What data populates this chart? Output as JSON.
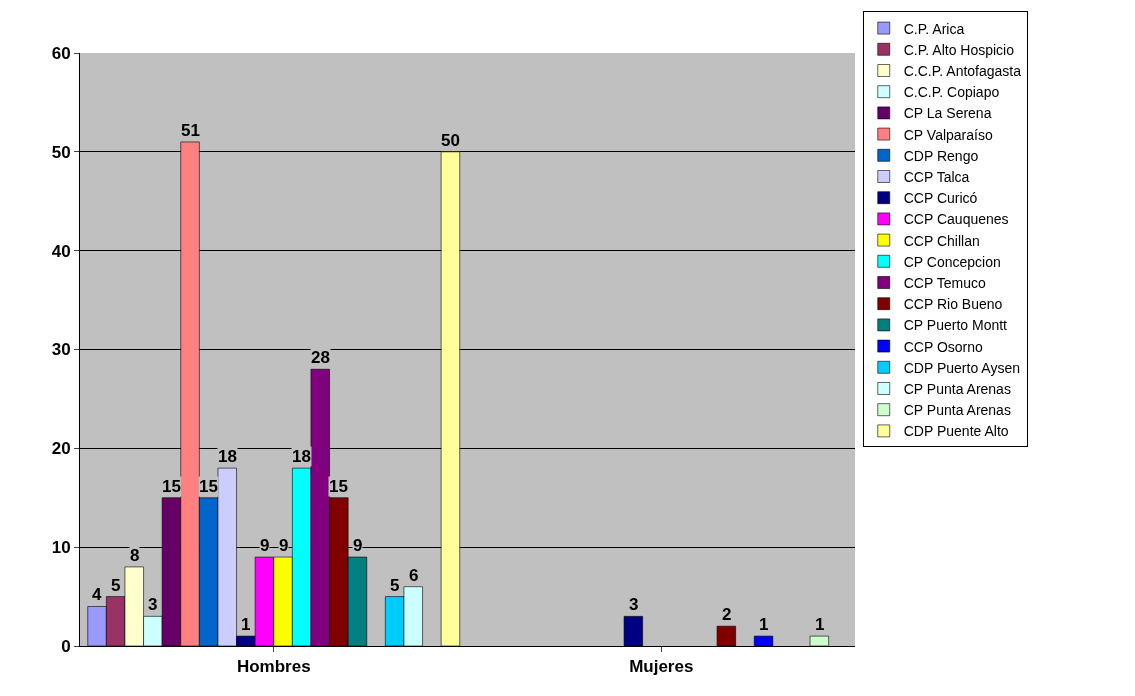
{
  "chart_data": {
    "type": "bar",
    "categories": [
      "Hombres",
      "Mujeres"
    ],
    "series": [
      {
        "name": "C.P. Arica",
        "color": "#9999ff",
        "values": [
          4,
          null
        ]
      },
      {
        "name": "C.P. Alto Hospicio",
        "color": "#993366",
        "values": [
          5,
          null
        ]
      },
      {
        "name": "C.C.P. Antofagasta",
        "color": "#ffffcc",
        "values": [
          8,
          null
        ]
      },
      {
        "name": "C.C.P. Copiapo",
        "color": "#ccffff",
        "values": [
          3,
          null
        ]
      },
      {
        "name": "CP La Serena",
        "color": "#660066",
        "values": [
          15,
          null
        ]
      },
      {
        "name": "CP Valparaíso",
        "color": "#ff8080",
        "values": [
          51,
          null
        ]
      },
      {
        "name": "CDP Rengo",
        "color": "#0066cc",
        "values": [
          15,
          null
        ]
      },
      {
        "name": "CCP Talca",
        "color": "#ccccff",
        "values": [
          18,
          null
        ]
      },
      {
        "name": "CCP Curicó",
        "color": "#000080",
        "values": [
          1,
          3
        ]
      },
      {
        "name": "CCP Cauquenes",
        "color": "#ff00ff",
        "values": [
          9,
          null
        ]
      },
      {
        "name": "CCP Chillan",
        "color": "#ffff00",
        "values": [
          9,
          null
        ]
      },
      {
        "name": "CP Concepcion",
        "color": "#00ffff",
        "values": [
          18,
          null
        ]
      },
      {
        "name": "CCP Temuco",
        "color": "#800080",
        "values": [
          28,
          null
        ]
      },
      {
        "name": "CCP Rio Bueno",
        "color": "#800000",
        "values": [
          15,
          2
        ]
      },
      {
        "name": "CP Puerto Montt",
        "color": "#008080",
        "values": [
          9,
          null
        ]
      },
      {
        "name": "CCP Osorno",
        "color": "#0000ff",
        "values": [
          null,
          1
        ]
      },
      {
        "name": "CDP Puerto Aysen",
        "color": "#00ccff",
        "values": [
          5,
          null
        ]
      },
      {
        "name": "CP Punta Arenas",
        "color": "#ccffff",
        "values": [
          6,
          null
        ]
      },
      {
        "name": "CP Punta Arenas",
        "color": "#ccffcc",
        "values": [
          null,
          1
        ]
      },
      {
        "name": "CDP Puente Alto",
        "color": "#ffff99",
        "values": [
          50,
          null
        ]
      }
    ],
    "ylim": [
      0,
      60
    ],
    "yticks": [
      0,
      10,
      20,
      30,
      40,
      50,
      60
    ],
    "grid": "y",
    "legend": "right",
    "data_labels": true
  }
}
